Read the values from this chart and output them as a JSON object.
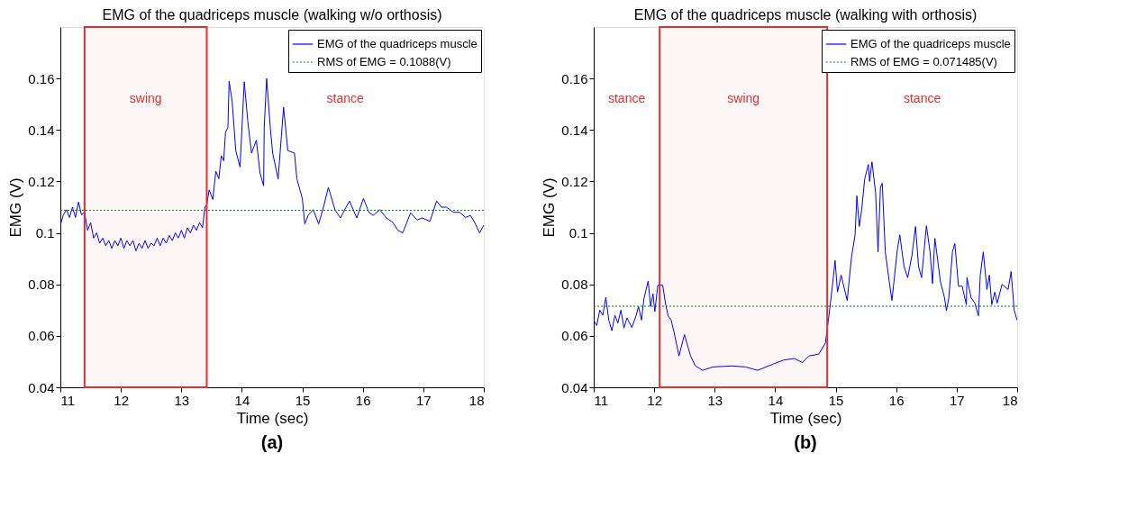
{
  "chart_data": [
    {
      "type": "line",
      "title": "EMG of the quadriceps muscle (walking w/o orthosis)",
      "xlabel": "Time (sec)",
      "ylabel": "EMG (V)",
      "xlim": [
        11,
        18
      ],
      "ylim": [
        0.04,
        0.18
      ],
      "xticks": [
        11,
        12,
        13,
        14,
        15,
        16,
        17,
        18
      ],
      "yticks": [
        0.04,
        0.06,
        0.08,
        0.1,
        0.12,
        0.14,
        0.16
      ],
      "grid": false,
      "legend": "top right",
      "marker": "none",
      "series": [
        {
          "name": "EMG of the quadriceps muscle",
          "color": "#0000ff",
          "line_style": "solid",
          "x": [
            11.0,
            11.05,
            11.1,
            11.15,
            11.2,
            11.25,
            11.3,
            11.35,
            11.4,
            11.45,
            11.5,
            11.55,
            11.6,
            11.65,
            11.7,
            11.75,
            11.8,
            11.85,
            11.9,
            11.95,
            12.0,
            12.05,
            12.1,
            12.15,
            12.2,
            12.25,
            12.3,
            12.35,
            12.4,
            12.45,
            12.5,
            12.55,
            12.6,
            12.65,
            12.7,
            12.75,
            12.8,
            12.85,
            12.9,
            12.95,
            13.0,
            13.05,
            13.1,
            13.15,
            13.2,
            13.25,
            13.3,
            13.35,
            13.39,
            13.42,
            13.46,
            13.52,
            13.57,
            13.62,
            13.66,
            13.7,
            13.73,
            13.77,
            13.79,
            13.84,
            13.9,
            13.97,
            14.04,
            14.1,
            14.16,
            14.24,
            14.3,
            14.36,
            14.37,
            14.41,
            14.47,
            14.51,
            14.6,
            14.69,
            14.76,
            14.87,
            14.91,
            15.0,
            15.04,
            15.1,
            15.18,
            15.27,
            15.35,
            15.43,
            15.54,
            15.63,
            15.7,
            15.78,
            15.9,
            16.01,
            16.1,
            16.17,
            16.28,
            16.39,
            16.5,
            16.58,
            16.66,
            16.79,
            16.9,
            16.98,
            17.11,
            17.22,
            17.3,
            17.38,
            17.5,
            17.6,
            17.7,
            17.78,
            17.85,
            17.93,
            18.0
          ],
          "values": [
            0.103,
            0.107,
            0.109,
            0.106,
            0.11,
            0.106,
            0.112,
            0.107,
            0.108,
            0.101,
            0.104,
            0.098,
            0.1,
            0.096,
            0.098,
            0.095,
            0.097,
            0.094,
            0.097,
            0.095,
            0.098,
            0.094,
            0.097,
            0.095,
            0.097,
            0.093,
            0.096,
            0.094,
            0.097,
            0.094,
            0.096,
            0.095,
            0.098,
            0.095,
            0.098,
            0.096,
            0.099,
            0.097,
            0.1,
            0.098,
            0.101,
            0.098,
            0.102,
            0.1,
            0.103,
            0.101,
            0.104,
            0.102,
            0.11,
            0.111,
            0.1167,
            0.113,
            0.124,
            0.121,
            0.13,
            0.128,
            0.139,
            0.141,
            0.159,
            0.151,
            0.132,
            0.1256,
            0.1587,
            0.143,
            0.131,
            0.136,
            0.1233,
            0.1183,
            0.141,
            0.16,
            0.141,
            0.131,
            0.121,
            0.1488,
            0.132,
            0.131,
            0.121,
            0.1134,
            0.1035,
            0.107,
            0.109,
            0.1035,
            0.11,
            0.1177,
            0.109,
            0.1058,
            0.109,
            0.1124,
            0.1058,
            0.1134,
            0.108,
            0.1068,
            0.109,
            0.1058,
            0.104,
            0.101,
            0.1,
            0.1078,
            0.105,
            0.1058,
            0.1045,
            0.1124,
            0.11,
            0.11,
            0.108,
            0.108,
            0.106,
            0.1068,
            0.104,
            0.1,
            0.103
          ]
        }
      ],
      "ref_lines": [
        {
          "axis": "y",
          "value": 0.1088,
          "label": "RMS of EMG = 0.1088(V)",
          "color": "#008000",
          "line_style": "dotted"
        }
      ],
      "bands": [
        {
          "axis": "x",
          "from": 11.4,
          "to": 13.42,
          "color": "#e03030",
          "label": "swing"
        }
      ],
      "annotations": [
        "stance",
        "(a)"
      ]
    },
    {
      "type": "line",
      "title": "EMG of the quadriceps muscle (walking with orthosis)",
      "xlabel": "Time (sec)",
      "ylabel": "EMG (V)",
      "xlim": [
        11,
        18
      ],
      "ylim": [
        0.04,
        0.18
      ],
      "xticks": [
        11,
        12,
        13,
        14,
        15,
        16,
        17,
        18
      ],
      "yticks": [
        0.04,
        0.06,
        0.08,
        0.1,
        0.12,
        0.14,
        0.16
      ],
      "grid": false,
      "legend": "top right",
      "marker": "none",
      "series": [
        {
          "name": "EMG of the quadriceps muscle",
          "color": "#0000ff",
          "line_style": "solid",
          "x": [
            11.0,
            11.05,
            11.1,
            11.15,
            11.2,
            11.25,
            11.3,
            11.35,
            11.4,
            11.45,
            11.5,
            11.55,
            11.63,
            11.7,
            11.74,
            11.79,
            11.83,
            11.9,
            11.94,
            11.98,
            12.01,
            12.06,
            12.14,
            12.19,
            12.23,
            12.28,
            12.33,
            12.41,
            12.5,
            12.6,
            12.68,
            12.8,
            12.97,
            13.28,
            13.51,
            13.71,
            13.95,
            14.14,
            14.32,
            14.45,
            14.56,
            14.72,
            14.83,
            14.89,
            14.95,
            14.99,
            15.03,
            15.09,
            15.19,
            15.26,
            15.32,
            15.35,
            15.39,
            15.43,
            15.48,
            15.54,
            15.56,
            15.6,
            15.66,
            15.7,
            15.74,
            15.77,
            15.82,
            15.89,
            15.93,
            15.97,
            16.02,
            16.06,
            16.13,
            16.19,
            16.26,
            16.32,
            16.37,
            16.42,
            16.5,
            16.56,
            16.6,
            16.64,
            16.73,
            16.8,
            16.83,
            16.87,
            16.93,
            16.97,
            17.03,
            17.09,
            17.16,
            17.17,
            17.24,
            17.3,
            17.36,
            17.39,
            17.44,
            17.5,
            17.54,
            17.58,
            17.63,
            17.67,
            17.75,
            17.85,
            17.9,
            17.95,
            18.0
          ],
          "values": [
            0.066,
            0.064,
            0.07,
            0.068,
            0.075,
            0.066,
            0.062,
            0.068,
            0.065,
            0.07,
            0.063,
            0.067,
            0.0632,
            0.0678,
            0.0714,
            0.0661,
            0.0744,
            0.0813,
            0.0714,
            0.0764,
            0.0694,
            0.0797,
            0.0797,
            0.0721,
            0.0678,
            0.0661,
            0.0612,
            0.0522,
            0.0605,
            0.0522,
            0.0483,
            0.0466,
            0.0479,
            0.0483,
            0.0479,
            0.0466,
            0.0489,
            0.0506,
            0.0512,
            0.0496,
            0.0522,
            0.0529,
            0.0572,
            0.0681,
            0.0803,
            0.0893,
            0.077,
            0.0836,
            0.0737,
            0.0903,
            0.0992,
            0.1144,
            0.1025,
            0.1091,
            0.121,
            0.1266,
            0.12,
            0.1276,
            0.1157,
            0.0926,
            0.1177,
            0.1193,
            0.0926,
            0.0803,
            0.0737,
            0.0826,
            0.0936,
            0.0992,
            0.0869,
            0.0826,
            0.0912,
            0.1025,
            0.0869,
            0.0826,
            0.1028,
            0.0926,
            0.0803,
            0.0979,
            0.0813,
            0.0747,
            0.0698,
            0.0747,
            0.0926,
            0.0959,
            0.0793,
            0.0793,
            0.0721,
            0.0826,
            0.0747,
            0.0727,
            0.0678,
            0.0836,
            0.0926,
            0.078,
            0.0836,
            0.0721,
            0.077,
            0.0727,
            0.08,
            0.078,
            0.085,
            0.07,
            0.066
          ]
        }
      ],
      "ref_lines": [
        {
          "axis": "y",
          "value": 0.071485,
          "label": "RMS of EMG = 0.071485(V)",
          "color": "#008000",
          "line_style": "dotted"
        }
      ],
      "bands": [
        {
          "axis": "x",
          "from": 12.09,
          "to": 14.86,
          "color": "#e03030",
          "label": "swing"
        }
      ],
      "annotations": [
        "stance",
        "stance",
        "(b)"
      ]
    }
  ]
}
